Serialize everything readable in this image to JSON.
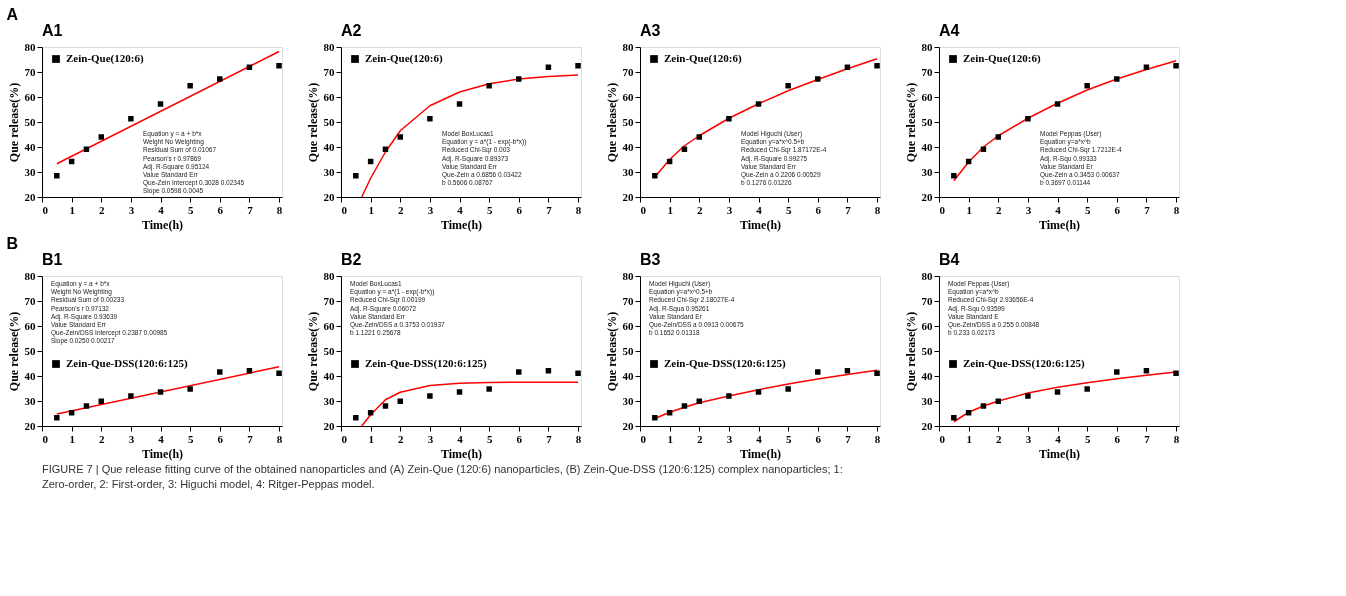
{
  "chart_data": [
    {
      "type": "scatter",
      "title": "A1",
      "subtitle": "A",
      "xlabel": "Time(h)",
      "ylabel": "Que release(%)",
      "x": [
        0.5,
        1,
        1.5,
        2,
        3,
        4,
        5,
        6,
        7,
        8
      ],
      "xlim": [
        0,
        8.1
      ],
      "xticks": [
        0,
        1,
        2,
        3,
        4,
        5,
        6,
        7,
        8
      ],
      "ylim": [
        20,
        80
      ],
      "yticks": [
        20,
        30,
        40,
        50,
        60,
        70,
        80
      ],
      "grid": false,
      "legend": "top left",
      "series": [
        {
          "name": "Zein-Que(120:6)",
          "color": "#000000",
          "marker": "square",
          "values": [
            28.5,
            34.2,
            39.1,
            44,
            51.3,
            57.2,
            64.5,
            67.2,
            71.9,
            72.5
          ]
        },
        {
          "type": "line",
          "color": "#ff0000",
          "x": [
            0.5,
            8
          ],
          "values": [
            33.3,
            78.2
          ]
        }
      ],
      "annotations": [
        "Equation   y = a + b*x",
        "Weight   No Weighting",
        "Residual Sum of   0.01067",
        "Pearson's r   0.97869",
        "Adj. R-Square   0.95124",
        "Value   Standard Err",
        "Que-Zein   Intercept   0.3028   0.02345",
        "Slope   0.0598   0.0045"
      ]
    },
    {
      "type": "scatter",
      "title": "A2",
      "xlabel": "Time(h)",
      "ylabel": "Que release(%)",
      "x": [
        0.5,
        1,
        1.5,
        2,
        3,
        4,
        5,
        6,
        7,
        8
      ],
      "xlim": [
        0,
        8.1
      ],
      "xticks": [
        0,
        1,
        2,
        3,
        4,
        5,
        6,
        7,
        8
      ],
      "ylim": [
        20,
        80
      ],
      "yticks": [
        20,
        30,
        40,
        50,
        60,
        70,
        80
      ],
      "grid": false,
      "legend": "top left",
      "series": [
        {
          "name": "Zein-Que(120:6)",
          "color": "#000000",
          "marker": "square",
          "values": [
            28.5,
            34.2,
            39.1,
            44,
            51.3,
            57.2,
            64.5,
            67.2,
            71.9,
            72.5
          ]
        },
        {
          "type": "line",
          "color": "#ff0000",
          "x": [
            0.7,
            1,
            1.5,
            2,
            3,
            4,
            5,
            6,
            7,
            8
          ],
          "values": [
            20,
            27.5,
            38,
            46.5,
            56.5,
            62,
            65.3,
            67.2,
            68.2,
            68.8
          ]
        }
      ],
      "annotations": [
        "Model   BoxLucas1",
        "Equation   y = a*(1 - exp(-b*x))",
        "Reduced Chi-Sqr   0.003",
        "Adj. R-Square   0.89373",
        "Value   Standard Err",
        "Que-Zein   a   0.6856   0.03422",
        "b   0.5606   0.08767"
      ]
    },
    {
      "type": "scatter",
      "title": "A3",
      "xlabel": "Time(h)",
      "ylabel": "Que release(%)",
      "x": [
        0.5,
        1,
        1.5,
        2,
        3,
        4,
        5,
        6,
        7,
        8
      ],
      "xlim": [
        0,
        8.1
      ],
      "xticks": [
        0,
        1,
        2,
        3,
        4,
        5,
        6,
        7,
        8
      ],
      "ylim": [
        20,
        80
      ],
      "yticks": [
        20,
        30,
        40,
        50,
        60,
        70,
        80
      ],
      "grid": false,
      "legend": "top left",
      "series": [
        {
          "name": "Zein-Que(120:6)",
          "color": "#000000",
          "marker": "square",
          "values": [
            28.5,
            34.2,
            39.1,
            44,
            51.3,
            57.2,
            64.5,
            67.2,
            71.9,
            72.5
          ]
        },
        {
          "type": "line",
          "color": "#ff0000",
          "x": [
            0.5,
            1,
            1.5,
            2,
            3,
            4,
            5,
            6,
            7,
            8
          ],
          "values": [
            28,
            35,
            40.5,
            44.5,
            51.5,
            57.3,
            62.5,
            67,
            71.3,
            75.3
          ]
        }
      ],
      "annotations": [
        "Model   Higuchi (User)",
        "Equation   y=a*x^0.5+b",
        "Reduced Chi-Sqr   1.87172E-4",
        "Adj. R-Square   0.99275",
        "Value   Standard Err",
        "Que-Zein   a   0.2206   0.00529",
        "b   0.1276   0.01226"
      ]
    },
    {
      "type": "scatter",
      "title": "A4",
      "xlabel": "Time(h)",
      "ylabel": "Que release(%)",
      "x": [
        0.5,
        1,
        1.5,
        2,
        3,
        4,
        5,
        6,
        7,
        8
      ],
      "xlim": [
        0,
        8.1
      ],
      "xticks": [
        0,
        1,
        2,
        3,
        4,
        5,
        6,
        7,
        8
      ],
      "ylim": [
        20,
        80
      ],
      "yticks": [
        20,
        30,
        40,
        50,
        60,
        70,
        80
      ],
      "grid": false,
      "legend": "top left",
      "series": [
        {
          "name": "Zein-Que(120:6)",
          "color": "#000000",
          "marker": "square",
          "values": [
            28.5,
            34.2,
            39.1,
            44,
            51.3,
            57.2,
            64.5,
            67.2,
            71.9,
            72.5
          ]
        },
        {
          "type": "line",
          "color": "#ff0000",
          "x": [
            0.5,
            1,
            1.5,
            2,
            3,
            4,
            5,
            6,
            7,
            8
          ],
          "values": [
            26.5,
            34,
            40,
            44.5,
            51.5,
            57.5,
            62.8,
            67.2,
            71,
            74.5
          ]
        }
      ],
      "annotations": [
        "Model   Peppas (User)",
        "Equation   y=a*x^b",
        "Reduced Chi-Sqr   1.7212E-4",
        "Adj. R-Squ   0.99333",
        "Value   Standard Er",
        "Que-Zein   a   0.3453   0.00637",
        "b   0.3697   0.01144"
      ]
    },
    {
      "type": "scatter",
      "title": "B1",
      "subtitle": "B",
      "xlabel": "Time(h)",
      "ylabel": "Que release(%)",
      "x": [
        0.5,
        1,
        1.5,
        2,
        3,
        4,
        5,
        6,
        7,
        8
      ],
      "xlim": [
        0,
        8.1
      ],
      "xticks": [
        0,
        1,
        2,
        3,
        4,
        5,
        6,
        7,
        8
      ],
      "ylim": [
        20,
        80
      ],
      "yticks": [
        20,
        30,
        40,
        50,
        60,
        70,
        80
      ],
      "grid": false,
      "legend": "left",
      "series": [
        {
          "name": "Zein-Que-DSS(120:6:125)",
          "color": "#000000",
          "marker": "square",
          "values": [
            23.3,
            25.3,
            28,
            29.9,
            32,
            33.6,
            34.8,
            41.6,
            42.1,
            41.1
          ]
        },
        {
          "type": "line",
          "color": "#ff0000",
          "x": [
            0.5,
            8
          ],
          "values": [
            24.8,
            43.7
          ]
        }
      ],
      "annotations": [
        "Equation   y = a + b*x",
        "Weight   No Weighting",
        "Residual Sum of   0.00233",
        "Pearson's r   0.97132",
        "Adj. R-Square   0.93639",
        "Value   Standard Err",
        "Que-Zein/DSS   Intercept   0.2387   0.00985",
        "Slope   0.0250   0.00217"
      ]
    },
    {
      "type": "scatter",
      "title": "B2",
      "xlabel": "Time(h)",
      "ylabel": "Que release(%)",
      "x": [
        0.5,
        1,
        1.5,
        2,
        3,
        4,
        5,
        6,
        7,
        8
      ],
      "xlim": [
        0,
        8.1
      ],
      "xticks": [
        0,
        1,
        2,
        3,
        4,
        5,
        6,
        7,
        8
      ],
      "ylim": [
        20,
        80
      ],
      "yticks": [
        20,
        30,
        40,
        50,
        60,
        70,
        80
      ],
      "grid": false,
      "legend": "left",
      "series": [
        {
          "name": "Zein-Que-DSS(120:6:125)",
          "color": "#000000",
          "marker": "square",
          "values": [
            23.3,
            25.3,
            28,
            29.9,
            32,
            33.6,
            34.8,
            41.6,
            42.1,
            41.1
          ]
        },
        {
          "type": "line",
          "color": "#ff0000",
          "x": [
            0.7,
            1,
            1.5,
            2,
            3,
            4,
            5,
            6,
            8
          ],
          "values": [
            20,
            24.5,
            30.5,
            33.5,
            36.2,
            37.1,
            37.4,
            37.5,
            37.5
          ]
        }
      ],
      "annotations": [
        "Model   BoxLucas1",
        "Equation   y = a*(1 - exp(-b*x))",
        "Reduced Chi-Sqr   0.00199",
        "Adj. R-Square   0.06072",
        "Value   Standard Err",
        "Que-Zein/DSS   a   0.3753   0.01937",
        "b   1.1221   0.25678"
      ]
    },
    {
      "type": "scatter",
      "title": "B3",
      "xlabel": "Time(h)",
      "ylabel": "Que release(%)",
      "x": [
        0.5,
        1,
        1.5,
        2,
        3,
        4,
        5,
        6,
        7,
        8
      ],
      "xlim": [
        0,
        8.1
      ],
      "xticks": [
        0,
        1,
        2,
        3,
        4,
        5,
        6,
        7,
        8
      ],
      "ylim": [
        20,
        80
      ],
      "yticks": [
        20,
        30,
        40,
        50,
        60,
        70,
        80
      ],
      "grid": false,
      "legend": "left",
      "series": [
        {
          "name": "Zein-Que-DSS(120:6:125)",
          "color": "#000000",
          "marker": "square",
          "values": [
            23.3,
            25.3,
            28,
            29.9,
            32,
            33.6,
            34.8,
            41.6,
            42.1,
            41.1
          ]
        },
        {
          "type": "line",
          "color": "#ff0000",
          "x": [
            0.5,
            1,
            1.5,
            2,
            3,
            4,
            5,
            6,
            7,
            8
          ],
          "values": [
            23,
            25.5,
            27.5,
            29.3,
            32,
            34.5,
            36.8,
            38.8,
            40.6,
            42.3
          ]
        }
      ],
      "annotations": [
        "Model   Higuchi (User)",
        "Equation   y=a*x^0.5+b",
        "Reduced Chi-Sqr   2.18027E-4",
        "Adj. R-Squa   0.95261",
        "Value   Standard Er",
        "Que-Zein/DSS   a   0.0913   0.00675",
        "b   0.1652   0.01318"
      ]
    },
    {
      "type": "scatter",
      "title": "B4",
      "xlabel": "Time(h)",
      "ylabel": "Que release(%)",
      "x": [
        0.5,
        1,
        1.5,
        2,
        3,
        4,
        5,
        6,
        7,
        8
      ],
      "xlim": [
        0,
        8.1
      ],
      "xticks": [
        0,
        1,
        2,
        3,
        4,
        5,
        6,
        7,
        8
      ],
      "ylim": [
        20,
        80
      ],
      "yticks": [
        20,
        30,
        40,
        50,
        60,
        70,
        80
      ],
      "grid": false,
      "legend": "left",
      "series": [
        {
          "name": "Zein-Que-DSS(120:6:125)",
          "color": "#000000",
          "marker": "square",
          "values": [
            23.3,
            25.3,
            28,
            29.9,
            32,
            33.6,
            34.8,
            41.6,
            42.1,
            41.1
          ]
        },
        {
          "type": "line",
          "color": "#ff0000",
          "x": [
            0.5,
            1,
            1.5,
            2,
            3,
            4,
            5,
            6,
            7,
            8
          ],
          "values": [
            21.7,
            25.5,
            28,
            30,
            33.2,
            35.5,
            37.3,
            38.9,
            40.3,
            41.6
          ]
        }
      ],
      "annotations": [
        "Model   Peppas (User)",
        "Equation   y=a*x^b",
        "Reduced Chi-Sqr   2.93656E-4",
        "Adj. R-Squ   0.93599",
        "Value   Standard E",
        "Que-Zein/DSS   a   0.255   0.00848",
        "b   0.233   0.02173"
      ]
    },
    {
      "type": "other",
      "annotations": [
        "FIGURE 7 | Que release fitting curve of the obtained nanoparticles and (A) Zein-Que (120:6) nanoparticles, (B) Zein-Que-DSS (120:6:125) complex nanoparticles; 1:",
        "Zero-order, 2: First-order, 3: Higuchi model, 4: Ritger-Peppas model."
      ]
    }
  ]
}
